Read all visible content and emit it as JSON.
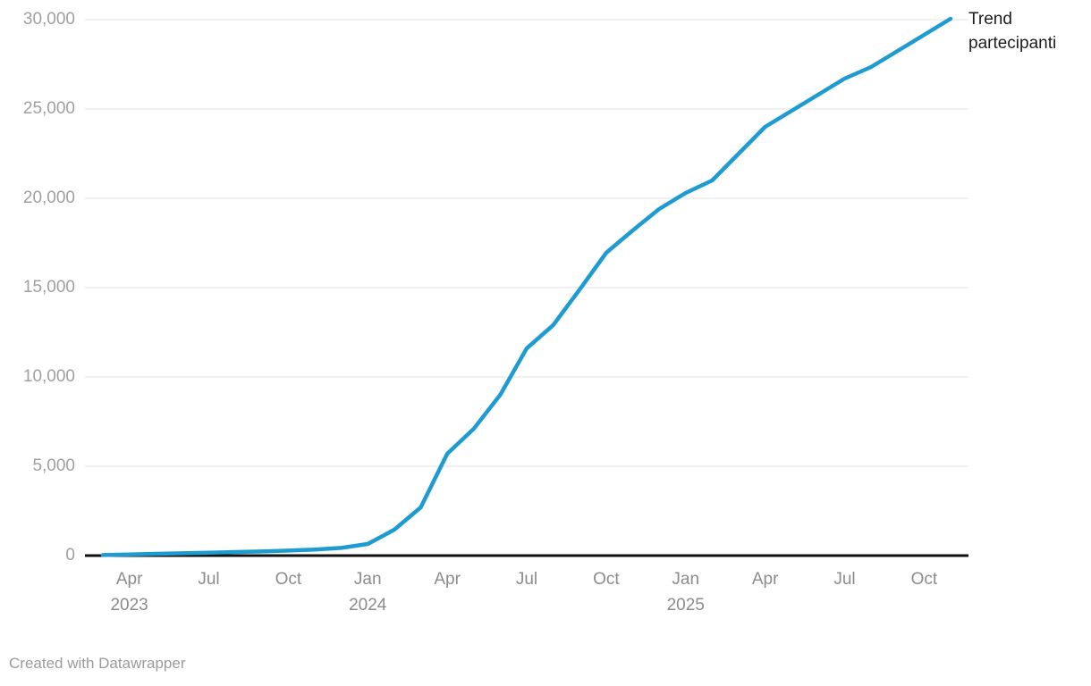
{
  "chart_data": {
    "type": "line",
    "series_label": "Trend partecipanti",
    "line_color": "#1e9bd1",
    "grid": true,
    "grid_color": "#e8e8e8",
    "zero_axis_color": "#111111",
    "legend_position": "right-of-line-end",
    "ylim": [
      0,
      30000
    ],
    "yticks": [
      0,
      5000,
      10000,
      15000,
      20000,
      25000,
      30000
    ],
    "ytick_labels": [
      "0",
      "5,000",
      "10,000",
      "15,000",
      "20,000",
      "25,000",
      "30,000"
    ],
    "x": [
      "Mar 2023",
      "Apr 2023",
      "May 2023",
      "Jun 2023",
      "Jul 2023",
      "Aug 2023",
      "Sep 2023",
      "Oct 2023",
      "Nov 2023",
      "Dec 2023",
      "Jan 2024",
      "Feb 2024",
      "Mar 2024",
      "Apr 2024",
      "May 2024",
      "Jun 2024",
      "Jul 2024",
      "Aug 2024",
      "Sep 2024",
      "Oct 2024",
      "Nov 2024",
      "Dec 2024",
      "Jan 2025",
      "Feb 2025",
      "Mar 2025",
      "Apr 2025",
      "May 2025",
      "Jun 2025",
      "Jul 2025",
      "Aug 2025",
      "Sep 2025",
      "Oct 2025",
      "Nov 2025"
    ],
    "values": [
      30,
      60,
      100,
      130,
      160,
      200,
      230,
      280,
      340,
      430,
      650,
      1450,
      2700,
      5700,
      7100,
      9000,
      11600,
      12900,
      14900,
      16950,
      18200,
      19400,
      20300,
      21000,
      22500,
      24000,
      24900,
      25800,
      26700,
      27350,
      28250,
      29150,
      30050
    ],
    "xticks": [
      {
        "index": 1,
        "label": "Apr",
        "year": "2023"
      },
      {
        "index": 4,
        "label": "Jul",
        "year": ""
      },
      {
        "index": 7,
        "label": "Oct",
        "year": ""
      },
      {
        "index": 10,
        "label": "Jan",
        "year": "2024"
      },
      {
        "index": 13,
        "label": "Apr",
        "year": ""
      },
      {
        "index": 16,
        "label": "Jul",
        "year": ""
      },
      {
        "index": 19,
        "label": "Oct",
        "year": ""
      },
      {
        "index": 22,
        "label": "Jan",
        "year": "2025"
      },
      {
        "index": 25,
        "label": "Apr",
        "year": ""
      },
      {
        "index": 28,
        "label": "Jul",
        "year": ""
      },
      {
        "index": 31,
        "label": "Oct",
        "year": ""
      }
    ]
  },
  "footer": {
    "attribution": "Created with Datawrapper"
  }
}
